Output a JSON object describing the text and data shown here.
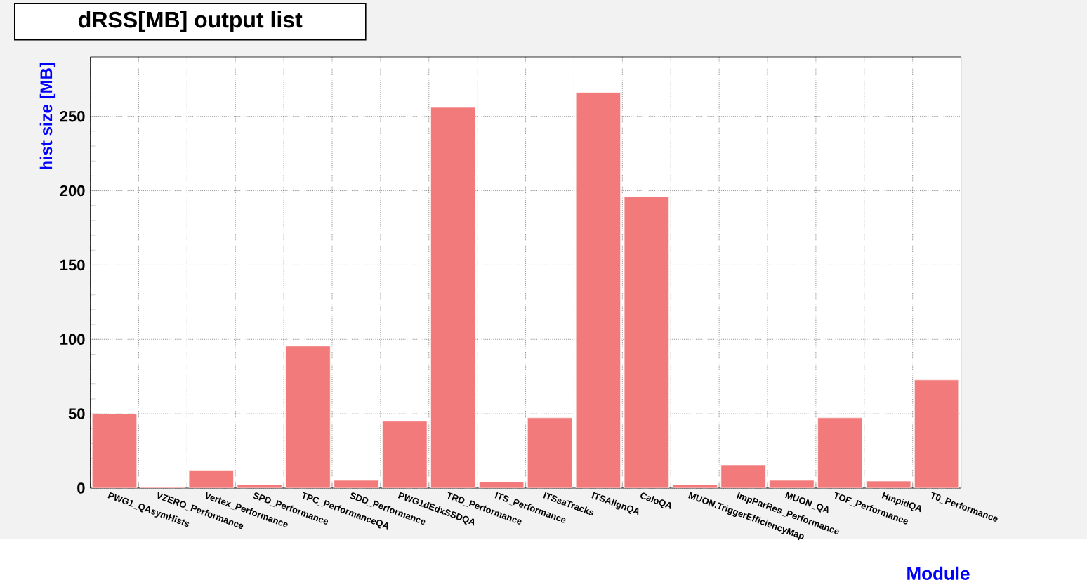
{
  "chart_data": {
    "type": "bar",
    "title": "dRSS[MB] output list",
    "xlabel": "Module",
    "ylabel": "hist size [MB]",
    "categories": [
      "PWG1_QAsymHists",
      "VZERO_Performance",
      "Vertex_Performance",
      "SPD_Performance",
      "TPC_PerformanceQA",
      "SDD_Performance",
      "PWG1dEdxSSDQA",
      "TRD_Performance",
      "ITS_Performance",
      "ITSsaTracks",
      "ITSAlignQA",
      "CaloQA",
      "MUON.TriggerEfficiencyMap",
      "ImpParRes_Performance",
      "MUON_QA",
      "TOF_Performance",
      "HmpidQA",
      "T0_Performance"
    ],
    "values": [
      50,
      0.5,
      12,
      2.4,
      95.5,
      5.2,
      45,
      256,
      4.3,
      47.3,
      266,
      196,
      2.4,
      15.6,
      5.2,
      47.3,
      4.7,
      72.8
    ],
    "color": "#f27a7a",
    "ylim": [
      0,
      290
    ],
    "yticks": [
      0,
      50,
      100,
      150,
      200,
      250
    ],
    "grid": true
  }
}
